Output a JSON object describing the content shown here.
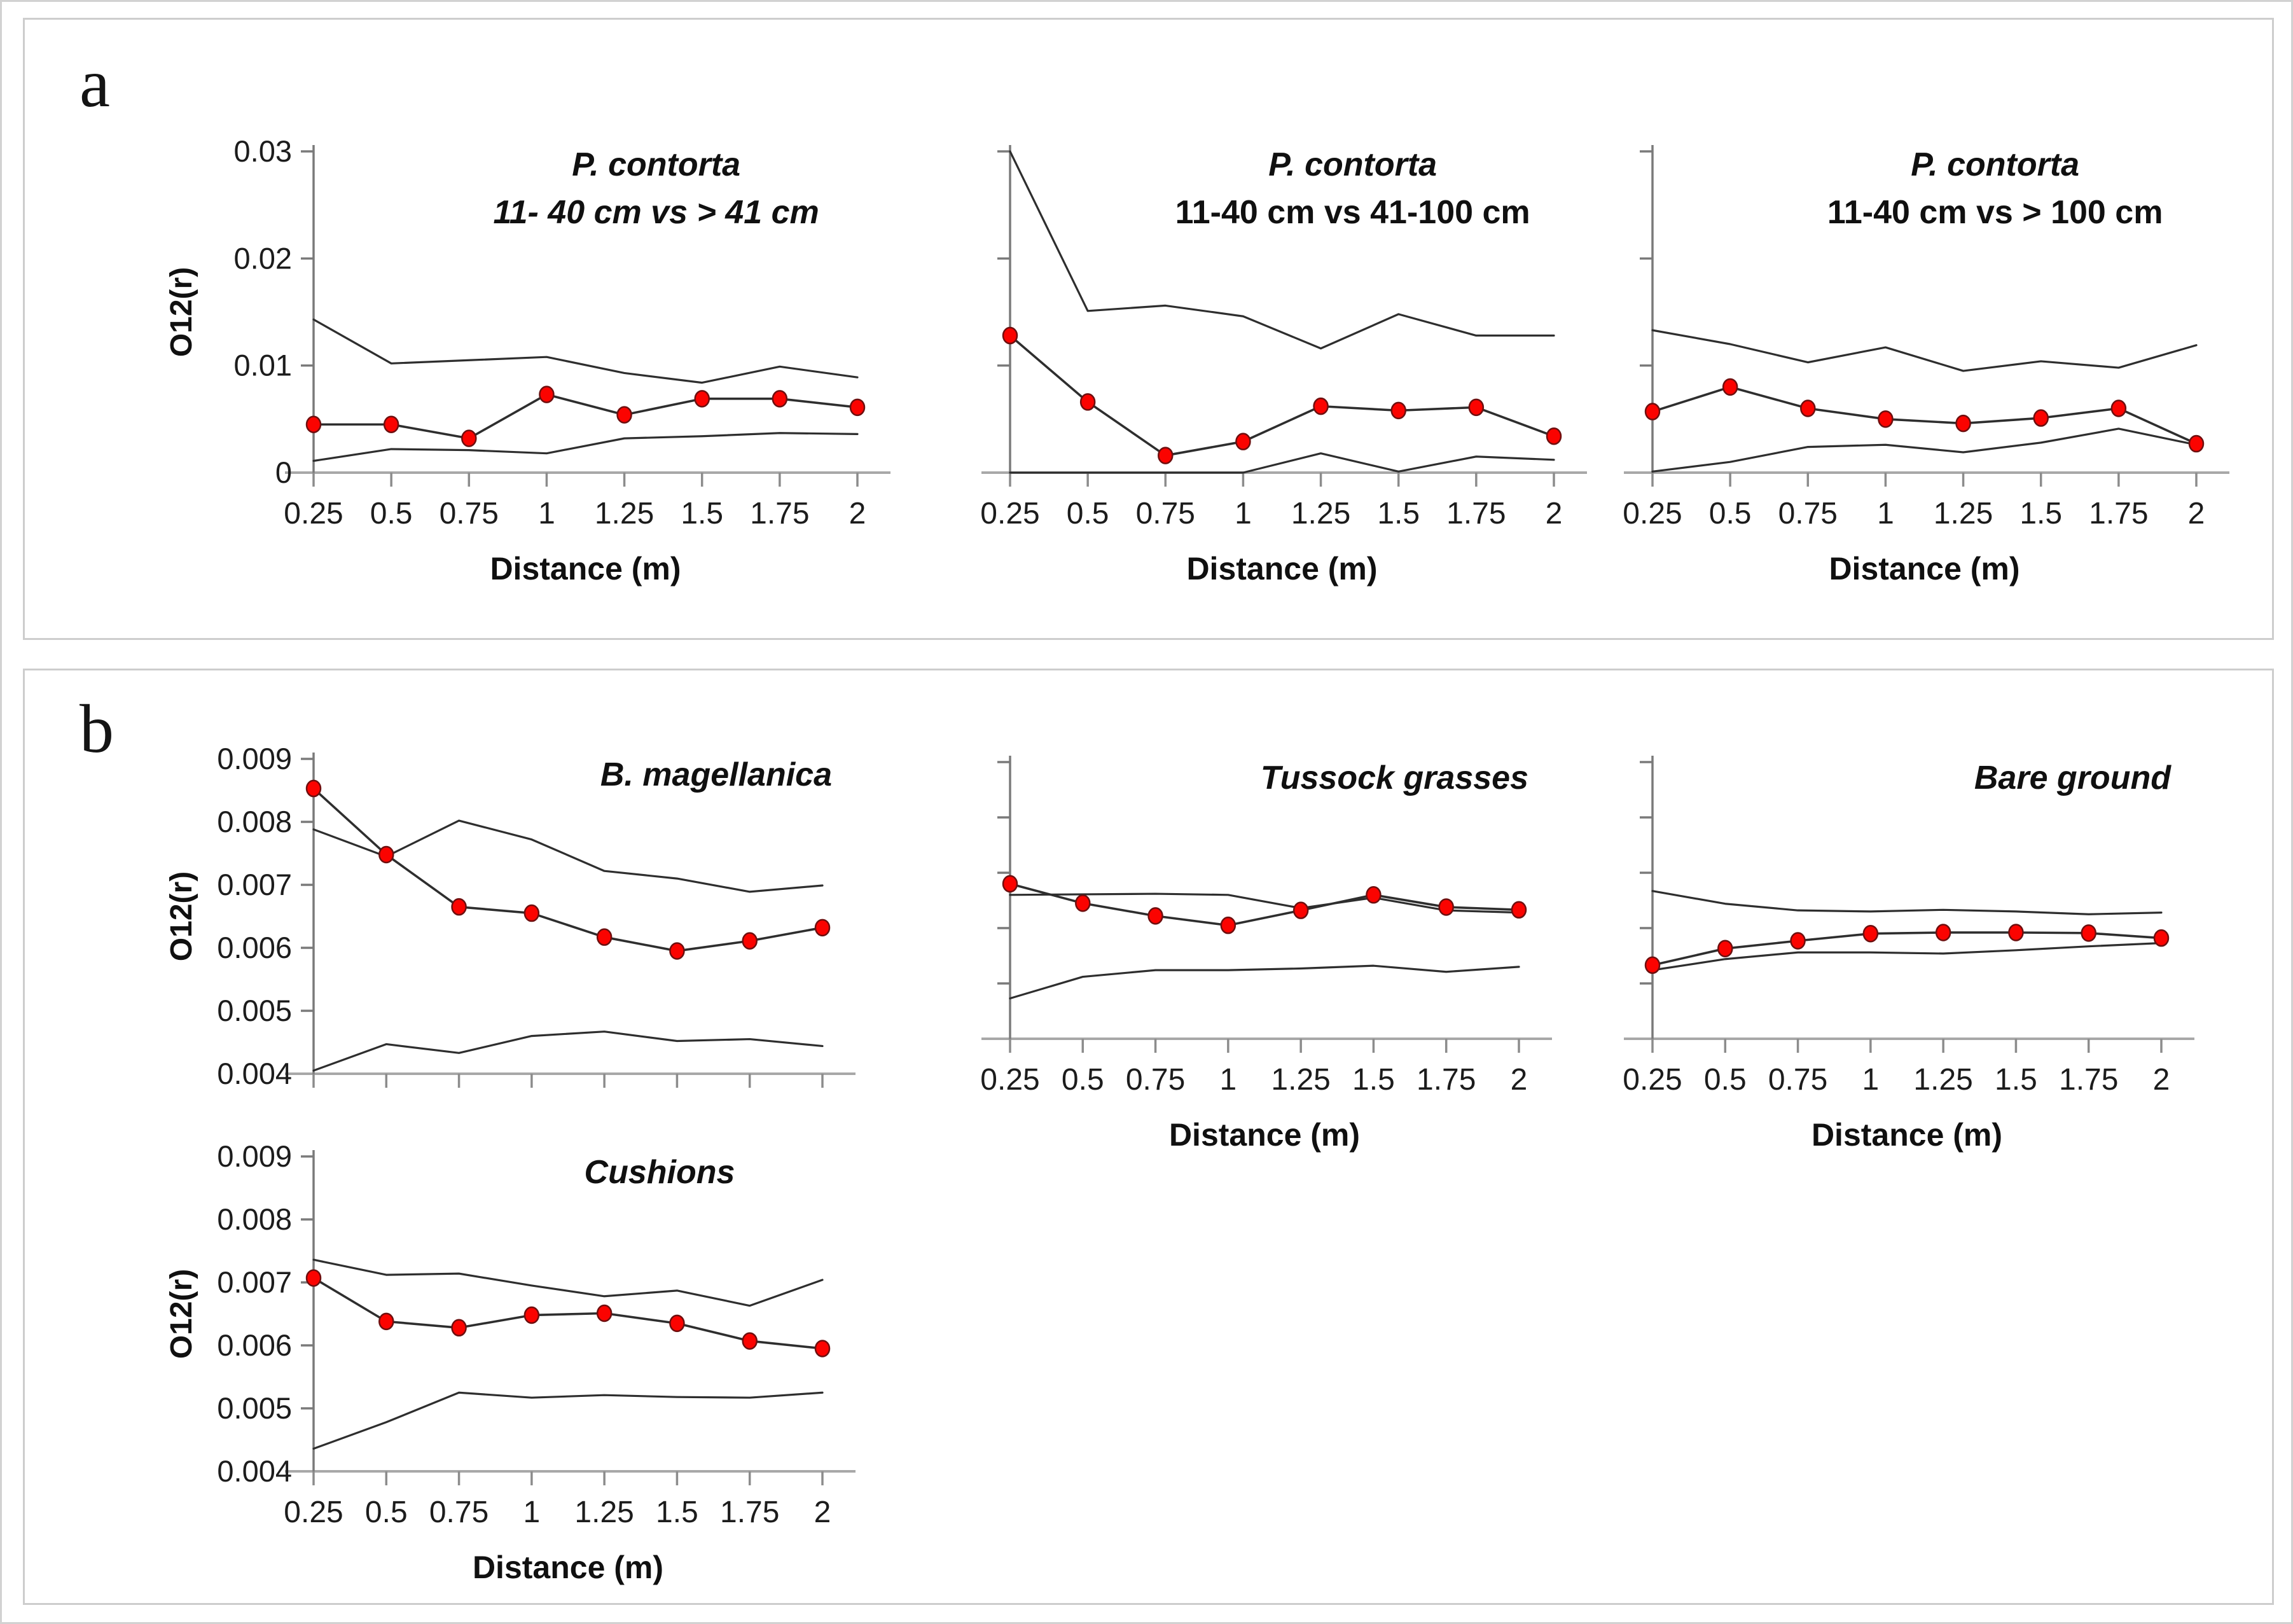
{
  "page": {
    "panel_a_label": "a",
    "panel_b_label": "b"
  },
  "colors": {
    "marker_fill": "#fb0300",
    "marker_stroke": "#6e0f0f",
    "line": "#2e2e2e",
    "y_axis": "#7a7a7a",
    "x_axis": "#a8a8a8",
    "tick": "#8c8c8c",
    "panel_border": "#cdcdcd",
    "text": "#1c1c1c"
  },
  "axis_labels": {
    "x_title": "Distance (m)",
    "y_title": "O12(r)"
  },
  "chart_data": [
    {
      "id": "a1",
      "panel": "a",
      "type": "line",
      "title": "P. contorta",
      "subtitle": "11- 40 cm vs > 41 cm",
      "subtitle_italic": true,
      "xlabel": "Distance (m)",
      "ylabel": "O12(r)",
      "x": [
        0.25,
        0.5,
        0.75,
        1,
        1.25,
        1.5,
        1.75,
        2
      ],
      "xtick_labels": [
        "0.25",
        "0.5",
        "0.75",
        "1",
        "1.25",
        "1.5",
        "1.75",
        "2"
      ],
      "ylim": [
        0,
        0.03
      ],
      "yticks": [
        0,
        0.01,
        0.02,
        0.03
      ],
      "ytick_labels": [
        "0",
        "0.01",
        "0.02",
        "0.03"
      ],
      "show_ytick_labels": true,
      "show_ylabel": true,
      "show_xtick_labels": true,
      "show_xlabel": true,
      "grid": false,
      "legend": "none",
      "series": [
        {
          "name": "upper_envelope",
          "values": [
            0.0143,
            0.0102,
            0.0105,
            0.0108,
            0.0093,
            0.0084,
            0.0099,
            0.0089
          ]
        },
        {
          "name": "observed",
          "marker": "circle",
          "values": [
            0.0045,
            0.0045,
            0.0032,
            0.0073,
            0.0054,
            0.0069,
            0.0069,
            0.0061
          ]
        },
        {
          "name": "lower_envelope",
          "values": [
            0.0011,
            0.0022,
            0.0021,
            0.0018,
            0.0032,
            0.0034,
            0.0037,
            0.0036
          ]
        }
      ]
    },
    {
      "id": "a2",
      "panel": "a",
      "type": "line",
      "title": "P. contorta",
      "subtitle": "11-40 cm vs 41-100 cm",
      "subtitle_italic": false,
      "xlabel": "Distance (m)",
      "ylabel": "",
      "x": [
        0.25,
        0.5,
        0.75,
        1,
        1.25,
        1.5,
        1.75,
        2
      ],
      "xtick_labels": [
        "0.25",
        "0.5",
        "0.75",
        "1",
        "1.25",
        "1.5",
        "1.75",
        "2"
      ],
      "ylim": [
        0,
        0.03
      ],
      "yticks": [
        0,
        0.01,
        0.02,
        0.03
      ],
      "ytick_labels": [
        "",
        "",
        "",
        ""
      ],
      "show_ytick_labels": false,
      "show_ylabel": false,
      "show_xtick_labels": true,
      "show_xlabel": true,
      "grid": false,
      "legend": "none",
      "series": [
        {
          "name": "upper_envelope",
          "values": [
            0.03,
            0.0151,
            0.0156,
            0.0146,
            0.0116,
            0.0148,
            0.0128,
            0.0128
          ]
        },
        {
          "name": "observed",
          "marker": "circle",
          "values": [
            0.0128,
            0.0066,
            0.0016,
            0.0029,
            0.0062,
            0.0058,
            0.0061,
            0.0034
          ]
        },
        {
          "name": "lower_envelope",
          "values": [
            0.0,
            0.0,
            0.0,
            0.0,
            0.0018,
            0.0001,
            0.0015,
            0.0012
          ]
        }
      ]
    },
    {
      "id": "a3",
      "panel": "a",
      "type": "line",
      "title": "P. contorta",
      "subtitle": "11-40 cm vs > 100 cm",
      "subtitle_italic": false,
      "xlabel": "Distance (m)",
      "ylabel": "",
      "x": [
        0.25,
        0.5,
        0.75,
        1,
        1.25,
        1.5,
        1.75,
        2
      ],
      "xtick_labels": [
        "0.25",
        "0.5",
        "0.75",
        "1",
        "1.25",
        "1.5",
        "1.75",
        "2"
      ],
      "ylim": [
        0,
        0.03
      ],
      "yticks": [
        0,
        0.01,
        0.02,
        0.03
      ],
      "ytick_labels": [
        "",
        "",
        "",
        ""
      ],
      "show_ytick_labels": false,
      "show_ylabel": false,
      "show_xtick_labels": true,
      "show_xlabel": true,
      "grid": false,
      "legend": "none",
      "series": [
        {
          "name": "upper_envelope",
          "values": [
            0.0133,
            0.012,
            0.0103,
            0.0117,
            0.0095,
            0.0104,
            0.0098,
            0.0119
          ]
        },
        {
          "name": "observed",
          "marker": "circle",
          "values": [
            0.0057,
            0.008,
            0.006,
            0.005,
            0.0046,
            0.0051,
            0.006,
            0.0027
          ]
        },
        {
          "name": "lower_envelope",
          "values": [
            0.0001,
            0.001,
            0.0024,
            0.0026,
            0.0019,
            0.0028,
            0.0041,
            0.0026
          ]
        }
      ]
    },
    {
      "id": "b1",
      "panel": "b",
      "type": "line",
      "title": "B. magellanica",
      "subtitle": "",
      "subtitle_italic": false,
      "xlabel": "",
      "ylabel": "O12(r)",
      "x": [
        0.25,
        0.5,
        0.75,
        1,
        1.25,
        1.5,
        1.75,
        2
      ],
      "xtick_labels": [
        "",
        "",
        "",
        "",
        "",
        "",
        "",
        ""
      ],
      "ylim": [
        0.004,
        0.009
      ],
      "yticks": [
        0.004,
        0.005,
        0.006,
        0.007,
        0.008,
        0.009
      ],
      "ytick_labels": [
        "0.004",
        "0.005",
        "0.006",
        "0.007",
        "0.008",
        "0.009"
      ],
      "show_ytick_labels": true,
      "show_ylabel": true,
      "show_xtick_labels": false,
      "show_xlabel": false,
      "grid": false,
      "legend": "none",
      "series": [
        {
          "name": "upper_envelope",
          "values": [
            0.00788,
            0.00745,
            0.00802,
            0.00772,
            0.00722,
            0.0071,
            0.00689,
            0.00699
          ]
        },
        {
          "name": "observed",
          "marker": "circle",
          "values": [
            0.00853,
            0.00748,
            0.00665,
            0.00655,
            0.00617,
            0.00595,
            0.00611,
            0.00632
          ]
        },
        {
          "name": "lower_envelope",
          "values": [
            0.00405,
            0.00447,
            0.00433,
            0.0046,
            0.00467,
            0.00452,
            0.00455,
            0.00444
          ]
        }
      ]
    },
    {
      "id": "b2",
      "panel": "b",
      "type": "line",
      "title": "Tussock grasses",
      "subtitle": "",
      "subtitle_italic": false,
      "xlabel": "Distance (m)",
      "ylabel": "",
      "x": [
        0.25,
        0.5,
        0.75,
        1,
        1.25,
        1.5,
        1.75,
        2
      ],
      "xtick_labels": [
        "0.25",
        "0.5",
        "0.75",
        "1",
        "1.25",
        "1.5",
        "1.75",
        "2"
      ],
      "ylim": [
        0.004,
        0.009
      ],
      "yticks": [
        0.004,
        0.005,
        0.006,
        0.007,
        0.008,
        0.009
      ],
      "ytick_labels": [
        "",
        "",
        "",
        "",
        "",
        ""
      ],
      "show_ytick_labels": false,
      "show_ylabel": false,
      "show_xtick_labels": true,
      "show_xlabel": true,
      "grid": false,
      "legend": "none",
      "series": [
        {
          "name": "upper_envelope",
          "values": [
            0.0066,
            0.00661,
            0.00662,
            0.0066,
            0.00636,
            0.00655,
            0.00632,
            0.00628
          ]
        },
        {
          "name": "observed",
          "marker": "circle",
          "values": [
            0.0068,
            0.00645,
            0.00622,
            0.00605,
            0.00632,
            0.0066,
            0.00638,
            0.00633
          ]
        },
        {
          "name": "lower_envelope",
          "values": [
            0.00473,
            0.00512,
            0.00524,
            0.00524,
            0.00527,
            0.00532,
            0.00521,
            0.0053
          ]
        }
      ]
    },
    {
      "id": "b3",
      "panel": "b",
      "type": "line",
      "title": "Bare ground",
      "subtitle": "",
      "subtitle_italic": false,
      "xlabel": "Distance (m)",
      "ylabel": "",
      "x": [
        0.25,
        0.5,
        0.75,
        1,
        1.25,
        1.5,
        1.75,
        2
      ],
      "xtick_labels": [
        "0.25",
        "0.5",
        "0.75",
        "1",
        "1.25",
        "1.5",
        "1.75",
        "2"
      ],
      "ylim": [
        0.004,
        0.009
      ],
      "yticks": [
        0.004,
        0.005,
        0.006,
        0.007,
        0.008,
        0.009
      ],
      "ytick_labels": [
        "",
        "",
        "",
        "",
        "",
        ""
      ],
      "show_ytick_labels": false,
      "show_ylabel": false,
      "show_xtick_labels": true,
      "show_xlabel": true,
      "grid": false,
      "legend": "none",
      "series": [
        {
          "name": "upper_envelope",
          "values": [
            0.00667,
            0.00644,
            0.00632,
            0.0063,
            0.00633,
            0.0063,
            0.00625,
            0.00628
          ]
        },
        {
          "name": "observed",
          "marker": "circle",
          "values": [
            0.00533,
            0.00563,
            0.00577,
            0.0059,
            0.00592,
            0.00592,
            0.00591,
            0.00582
          ]
        },
        {
          "name": "lower_envelope",
          "values": [
            0.00524,
            0.00544,
            0.00556,
            0.00556,
            0.00554,
            0.0056,
            0.00567,
            0.00573
          ]
        }
      ]
    },
    {
      "id": "b4",
      "panel": "b",
      "type": "line",
      "title": "Cushions",
      "subtitle": "",
      "subtitle_italic": false,
      "xlabel": "Distance (m)",
      "ylabel": "O12(r)",
      "x": [
        0.25,
        0.5,
        0.75,
        1,
        1.25,
        1.5,
        1.75,
        2
      ],
      "xtick_labels": [
        "0.25",
        "0.5",
        "0.75",
        "1",
        "1.25",
        "1.5",
        "1.75",
        "2"
      ],
      "ylim": [
        0.004,
        0.009
      ],
      "yticks": [
        0.004,
        0.005,
        0.006,
        0.007,
        0.008,
        0.009
      ],
      "ytick_labels": [
        "0.004",
        "0.005",
        "0.006",
        "0.007",
        "0.008",
        "0.009"
      ],
      "show_ytick_labels": true,
      "show_ylabel": true,
      "show_xtick_labels": true,
      "show_xlabel": true,
      "grid": false,
      "legend": "none",
      "series": [
        {
          "name": "upper_envelope",
          "values": [
            0.00736,
            0.00712,
            0.00714,
            0.00695,
            0.00678,
            0.00687,
            0.00663,
            0.00704
          ]
        },
        {
          "name": "observed",
          "marker": "circle",
          "values": [
            0.00707,
            0.00638,
            0.00628,
            0.00648,
            0.00651,
            0.00635,
            0.00607,
            0.00595
          ]
        },
        {
          "name": "lower_envelope",
          "values": [
            0.00436,
            0.00478,
            0.00525,
            0.00517,
            0.00521,
            0.00518,
            0.00517,
            0.00525
          ]
        }
      ]
    }
  ]
}
